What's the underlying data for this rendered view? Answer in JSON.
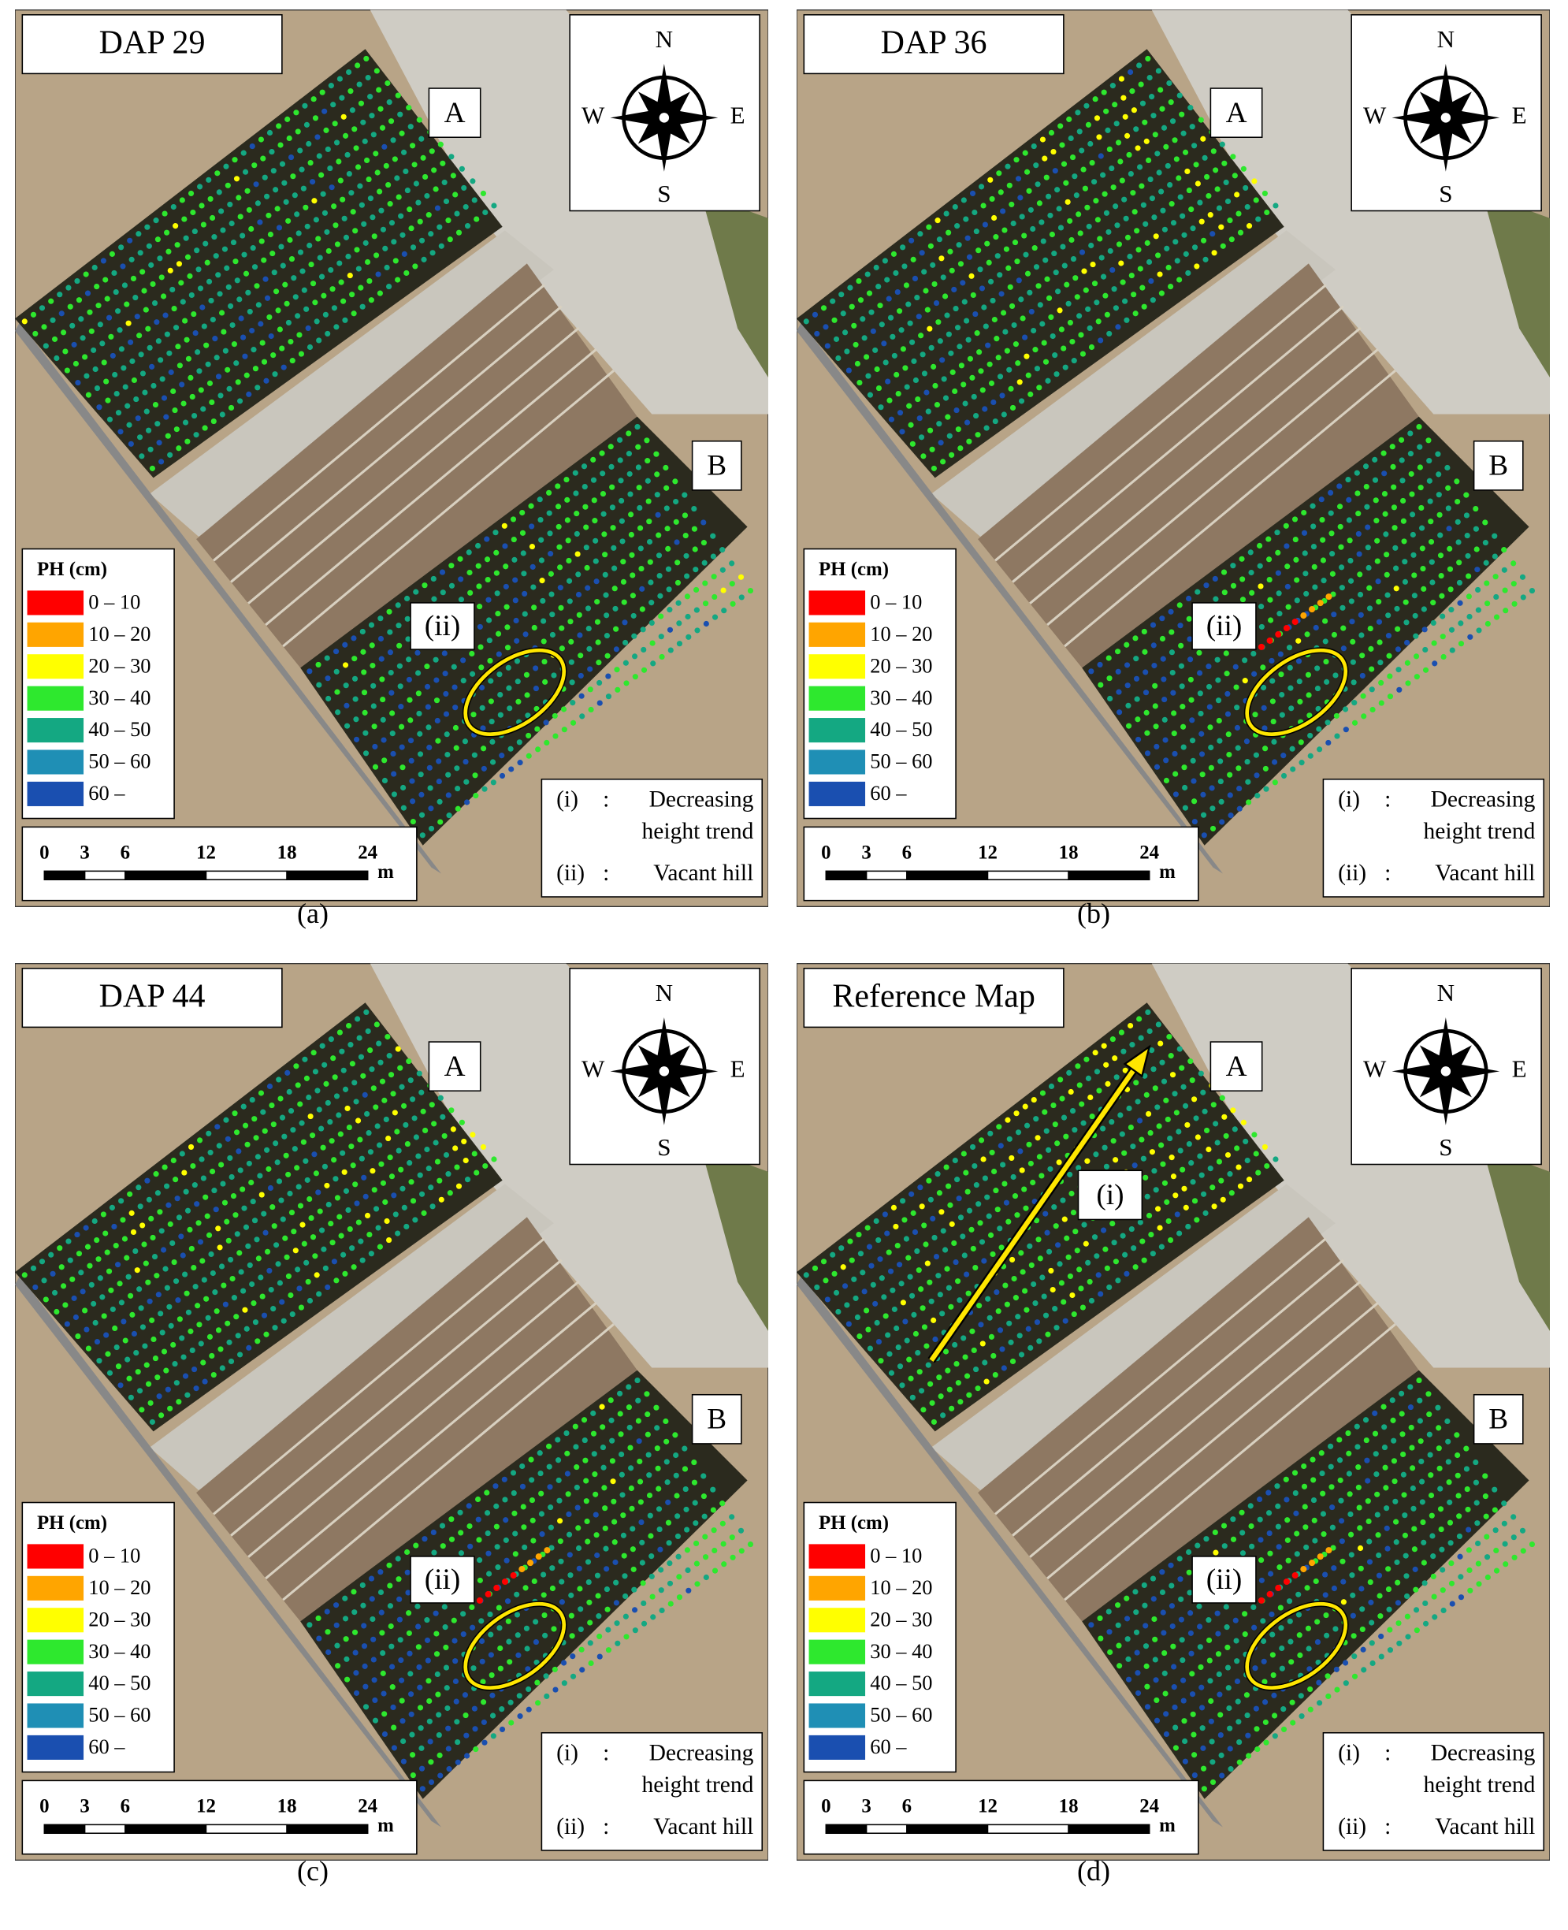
{
  "panels": [
    {
      "title": "DAP 29",
      "caption": "(a)"
    },
    {
      "title": "DAP 36",
      "caption": "(b)"
    },
    {
      "title": "DAP 44",
      "caption": "(c)"
    },
    {
      "title": "Reference Map",
      "caption": "(d)",
      "trend_label": "(i)"
    }
  ],
  "compass": {
    "n": "N",
    "e": "E",
    "s": "S",
    "w": "W"
  },
  "field_labels": {
    "a": "A",
    "b": "B"
  },
  "vacant_label": "(ii)",
  "legend": {
    "title": "PH (cm)",
    "items": [
      "0 – 10",
      "10 – 20",
      "20 – 30",
      "30 – 40",
      "40 – 50",
      "50 – 60",
      "60 –"
    ],
    "colors": [
      "#ff0000",
      "#ffa500",
      "#ffff00",
      "#2ee82e",
      "#14a882",
      "#1f8fb5",
      "#1a4fb0"
    ]
  },
  "scale_bar": {
    "ticks": [
      0,
      3,
      6,
      12,
      18,
      24
    ],
    "unit": "m"
  },
  "notes": [
    {
      "key": "(i)",
      "sep": ":",
      "lines": [
        "Decreasing",
        "height trend"
      ]
    },
    {
      "key": "(ii)",
      "sep": ":",
      "lines": [
        "Vacant hill"
      ]
    }
  ]
}
